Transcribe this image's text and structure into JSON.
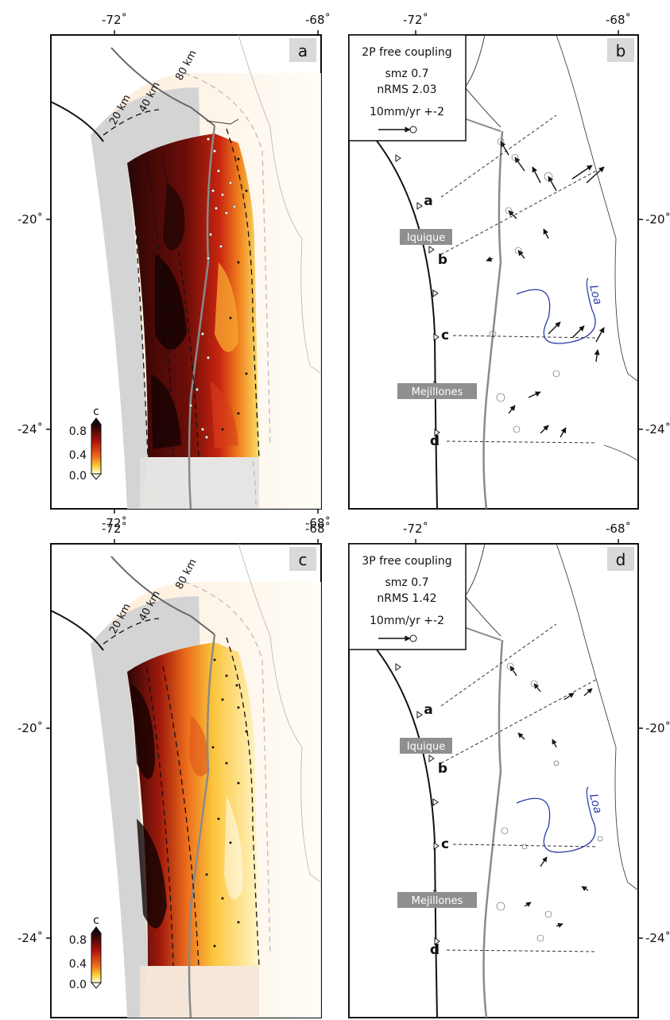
{
  "panels": [
    {
      "letter": "a",
      "top_ticks": [
        "-72˚",
        "-68˚"
      ],
      "bottom_ticks": [
        "-72˚",
        "-68˚"
      ],
      "left_ticks": [
        "-20˚",
        "-24˚"
      ],
      "depth_labels": [
        "20 km",
        "40 km",
        "80 km"
      ],
      "colorbar": {
        "title": "c",
        "ticks": [
          "0.8",
          "0.4",
          "0.0"
        ]
      }
    },
    {
      "letter": "b",
      "top_ticks": [
        "-72˚",
        "-68˚"
      ],
      "right_ticks": [
        "-20˚",
        "-24˚"
      ],
      "legend": {
        "model": "2P free coupling",
        "smz": "smz 0.7",
        "nrms": "nRMS 2.03",
        "scale": "10mm/yr +-2"
      },
      "profiles": [
        "a",
        "b",
        "c",
        "d"
      ],
      "cities": [
        "Iquique",
        "Mejillones"
      ],
      "river": "Loa"
    },
    {
      "letter": "c",
      "top_ticks": [
        "-72˚",
        "-68˚"
      ],
      "left_ticks": [
        "-20˚",
        "-24˚"
      ],
      "depth_labels": [
        "20 km",
        "40 km",
        "80 km"
      ],
      "colorbar": {
        "title": "c",
        "ticks": [
          "0.8",
          "0.4",
          "0.0"
        ]
      }
    },
    {
      "letter": "d",
      "top_ticks": [
        "-72˚",
        "-68˚"
      ],
      "right_ticks": [
        "-20˚",
        "-24˚"
      ],
      "legend": {
        "model": "3P free coupling",
        "smz": "smz 0.7",
        "nrms": "nRMS 1.42",
        "scale": "10mm/yr +-2"
      },
      "profiles": [
        "a",
        "b",
        "c",
        "d"
      ],
      "cities": [
        "Iquique",
        "Mejillones"
      ],
      "river": "Loa"
    }
  ]
}
